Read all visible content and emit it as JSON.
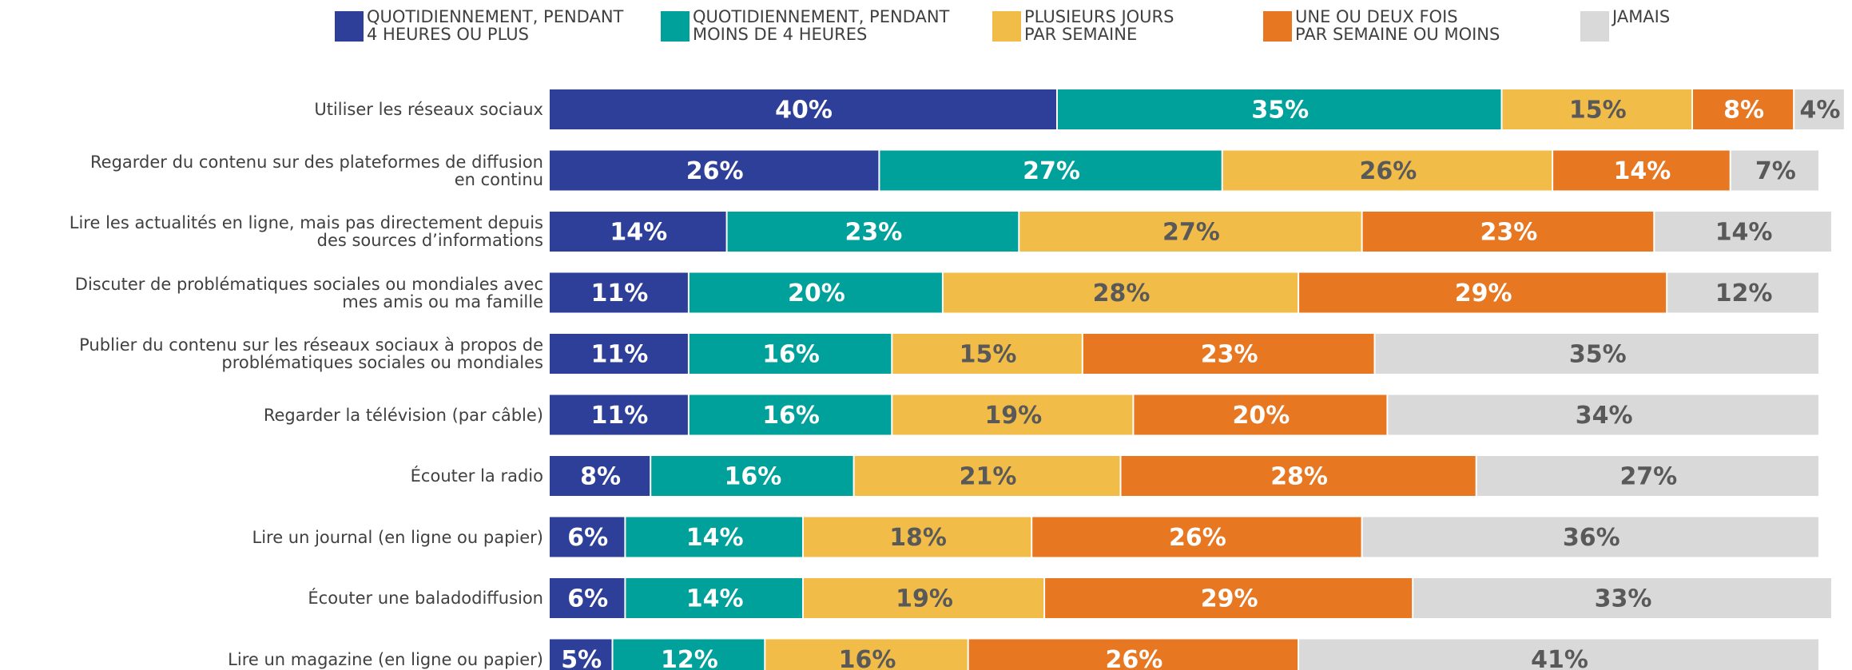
{
  "chart_data": {
    "type": "stacked_bar_horizontal",
    "xlim": [
      0,
      100
    ],
    "categories": [
      "Utiliser les réseaux sociaux",
      "Regarder du contenu sur des plateformes de diffusion\nen continu",
      "Lire les actualités en ligne, mais pas directement depuis\ndes sources d’informations",
      "Discuter de problématiques sociales ou mondiales avec\nmes amis ou ma famille",
      "Publier du contenu sur les réseaux sociaux à propos de\nproblématiques sociales ou mondiales",
      "Regarder la télévision (par câble)",
      "Écouter la radio",
      "Lire un journal (en ligne ou papier)",
      "Écouter une baladodiffusion",
      "Lire un magazine (en ligne ou papier)"
    ],
    "series": [
      {
        "name": "QUOTIDIENNEMENT, PENDANT\n4 HEURES OU PLUS",
        "color": "#2e3f99",
        "label_color": "#ffffff",
        "values": [
          40,
          26,
          14,
          11,
          11,
          11,
          8,
          6,
          6,
          5
        ],
        "value_labels": [
          "40%",
          "26%",
          "14%",
          "11%",
          "11%",
          "11%",
          "8%",
          "6%",
          "6%",
          "5%"
        ]
      },
      {
        "name": "QUOTIDIENNEMENT, PENDANT\nMOINS DE 4 HEURES",
        "color": "#00a19a",
        "label_color": "#ffffff",
        "values": [
          35,
          27,
          23,
          20,
          16,
          16,
          16,
          14,
          14,
          12
        ],
        "value_labels": [
          "35%",
          "27%",
          "23%",
          "20%",
          "16%",
          "16%",
          "16%",
          "14%",
          "14%",
          "12%"
        ]
      },
      {
        "name": "PLUSIEURS JOURS\nPAR SEMAINE",
        "color": "#f1bd48",
        "label_color": "#595959",
        "values": [
          15,
          26,
          27,
          28,
          15,
          19,
          21,
          18,
          19,
          16
        ],
        "value_labels": [
          "15%",
          "26%",
          "27%",
          "28%",
          "15%",
          "19%",
          "21%",
          "18%",
          "19%",
          "16%"
        ]
      },
      {
        "name": "UNE OU DEUX FOIS\nPAR SEMAINE OU MOINS",
        "color": "#e87722",
        "label_color": "#ffffff",
        "values": [
          8,
          14,
          23,
          29,
          23,
          20,
          28,
          26,
          29,
          26
        ],
        "value_labels": [
          "8%",
          "14%",
          "23%",
          "29%",
          "23%",
          "20%",
          "28%",
          "26%",
          "29%",
          "26%"
        ]
      },
      {
        "name": "JAMAIS",
        "color": "#d9d9d9",
        "label_color": "#595959",
        "values": [
          4,
          7,
          14,
          12,
          35,
          34,
          27,
          36,
          33,
          41
        ],
        "value_labels": [
          "4%",
          "7%",
          "14%",
          "12%",
          "35%",
          "34%",
          "27%",
          "36%",
          "33%",
          "41%"
        ]
      }
    ]
  }
}
